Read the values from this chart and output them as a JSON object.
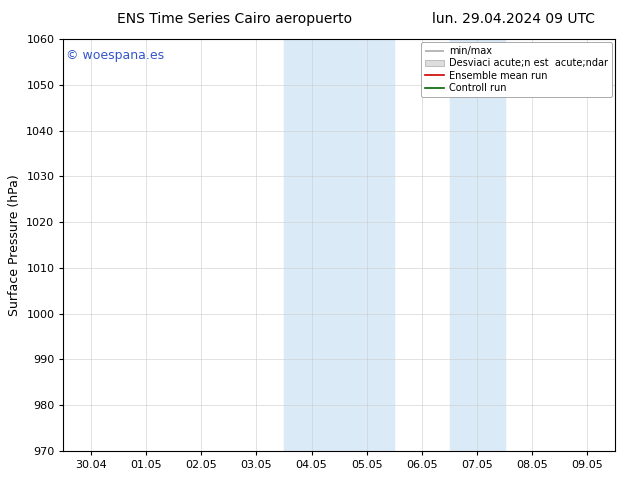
{
  "title_left": "ENS Time Series Cairo aeropuerto",
  "title_right": "lun. 29.04.2024 09 UTC",
  "ylabel": "Surface Pressure (hPa)",
  "watermark": "© woespana.es",
  "ylim": [
    970,
    1060
  ],
  "yticks": [
    970,
    980,
    990,
    1000,
    1010,
    1020,
    1030,
    1040,
    1050,
    1060
  ],
  "x_labels": [
    "30.04",
    "01.05",
    "02.05",
    "03.05",
    "04.05",
    "05.05",
    "06.05",
    "07.05",
    "08.05",
    "09.05"
  ],
  "shaded_regions": [
    {
      "start": 4,
      "end": 6
    },
    {
      "start": 7,
      "end": 8
    }
  ],
  "shaded_color": "#daeaf7",
  "legend_entries": [
    {
      "label": "min/max",
      "color": "#aaaaaa",
      "type": "line"
    },
    {
      "label": "Desviaci acute;n est  acute;ndar",
      "color": "#cccccc",
      "type": "band"
    },
    {
      "label": "Ensemble mean run",
      "color": "#cc0000",
      "type": "line"
    },
    {
      "label": "Controll run",
      "color": "#006600",
      "type": "line"
    }
  ],
  "bg_color": "#ffffff",
  "plot_bg_color": "#ffffff",
  "border_color": "#000000",
  "title_fontsize": 10,
  "tick_fontsize": 8,
  "ylabel_fontsize": 9,
  "watermark_color": "#3355cc",
  "watermark_fontsize": 9
}
